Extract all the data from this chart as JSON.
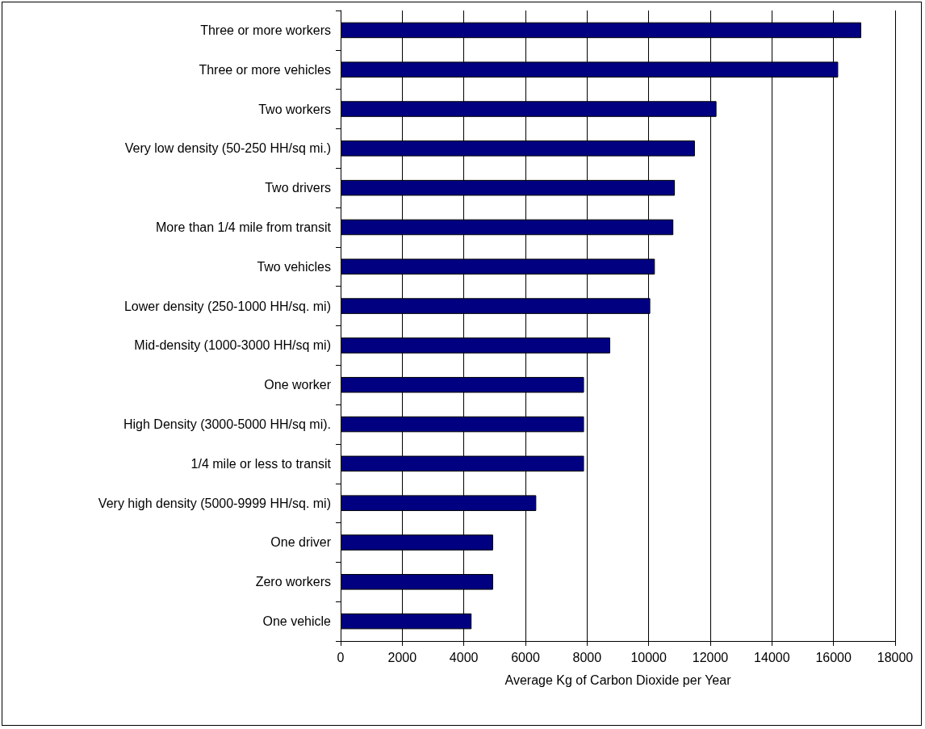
{
  "chart_data": {
    "type": "bar",
    "orientation": "horizontal",
    "xlabel": "Average Kg of Carbon Dioxide per Year",
    "categories": [
      "Three or more workers",
      "Three or more vehicles",
      "Two workers",
      "Very low density (50-250 HH/sq mi.)",
      "Two drivers",
      "More than 1/4 mile from transit",
      "Two vehicles",
      "Lower density (250-1000 HH/sq. mi)",
      "Mid-density (1000-3000 HH/sq mi)",
      "One worker",
      "High Density (3000-5000 HH/sq mi).",
      "1/4 mile or less to transit",
      "Very high density (5000-9999 HH/sq. mi)",
      "One driver",
      "Zero workers",
      "One vehicle"
    ],
    "values": [
      16900,
      16150,
      12200,
      11500,
      10850,
      10800,
      10200,
      10050,
      8750,
      7900,
      7900,
      7900,
      6350,
      4950,
      4950,
      4250
    ],
    "color": "#000080",
    "xlim": [
      0,
      18000
    ],
    "xticks": [
      0,
      2000,
      4000,
      6000,
      8000,
      10000,
      12000,
      14000,
      16000,
      18000
    ],
    "grid": "x"
  }
}
